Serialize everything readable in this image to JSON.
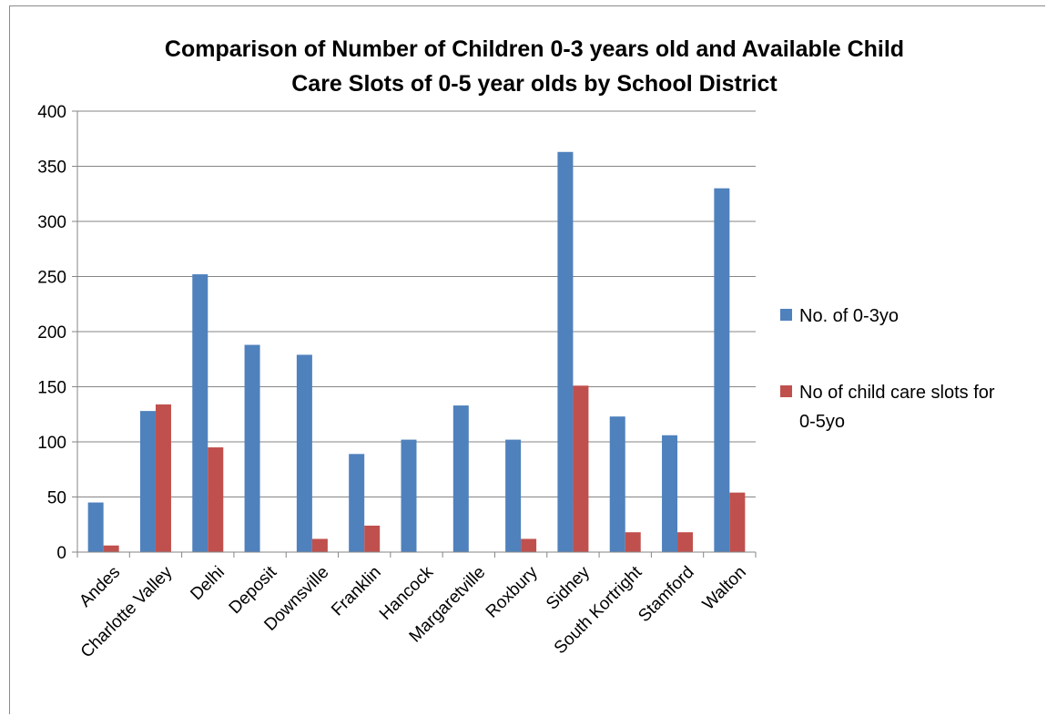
{
  "chart_data": {
    "type": "bar",
    "title_lines": [
      "Comparison of Number of Children 0-3 years old and Available Child",
      "Care Slots of 0-5 year olds by School District"
    ],
    "xlabel": "",
    "ylabel": "",
    "ylim": [
      0,
      400
    ],
    "yticks": [
      "0",
      "50",
      "100",
      "150",
      "200",
      "250",
      "300",
      "350",
      "400"
    ],
    "grid": true,
    "legend_position": "right",
    "categories": [
      "Andes",
      "Charlotte Valley",
      "Delhi",
      "Deposit",
      "Downsville",
      "Franklin",
      "Hancock",
      "Margaretville",
      "Roxbury",
      "Sidney",
      "South Kortright",
      "Stamford",
      "Walton"
    ],
    "series": [
      {
        "name": "No. of 0-3yo",
        "legend_lines": [
          "No. of 0-3yo"
        ],
        "color": "#4f81bd",
        "values": [
          45,
          128,
          252,
          188,
          179,
          89,
          102,
          133,
          102,
          363,
          123,
          106,
          330
        ]
      },
      {
        "name": "No of child care slots for 0-5yo",
        "legend_lines": [
          "No of child care slots for",
          "0-5yo"
        ],
        "color": "#c0504d",
        "values": [
          6,
          134,
          95,
          0,
          12,
          24,
          0,
          0,
          12,
          151,
          18,
          18,
          54
        ]
      }
    ]
  }
}
